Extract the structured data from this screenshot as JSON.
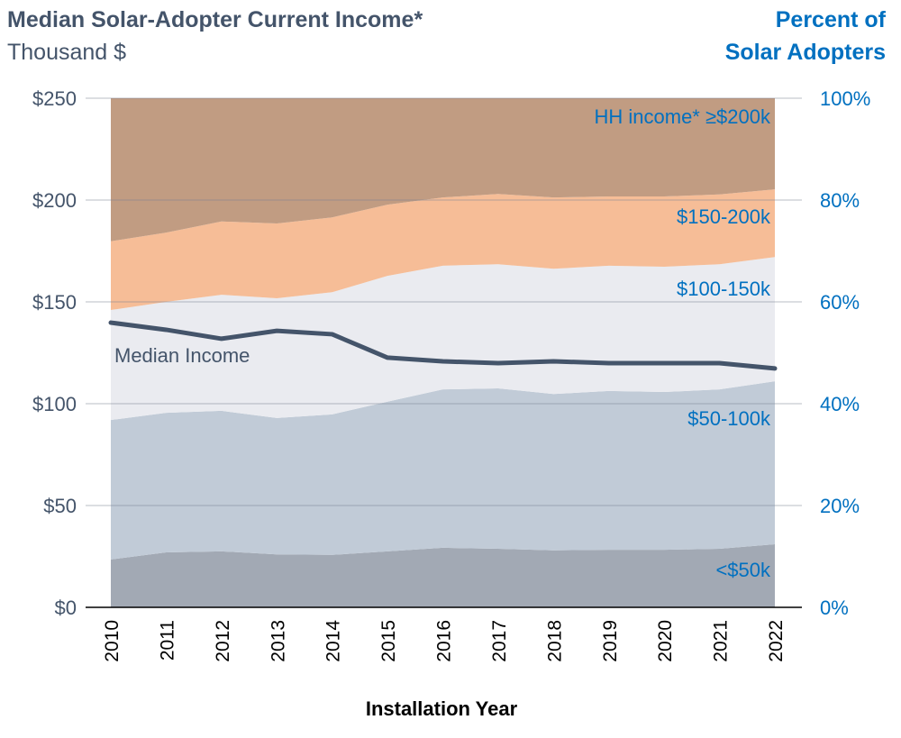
{
  "chart_data": {
    "type": "area",
    "title": "Median Solar-Adopter Current Income*",
    "subtitle": "Thousand $",
    "right_axis_title_line1": "Percent of",
    "right_axis_title_line2": "Solar Adopters",
    "xlabel": "Installation Year",
    "categories": [
      "2010",
      "2011",
      "2012",
      "2013",
      "2014",
      "2015",
      "2016",
      "2017",
      "2018",
      "2019",
      "2020",
      "2021",
      "2022"
    ],
    "left_axis": {
      "ylim": [
        0,
        250
      ],
      "ticks": [
        "$0",
        "$50",
        "$100",
        "$150",
        "$200",
        "$250"
      ],
      "tick_values": [
        0,
        50,
        100,
        150,
        200,
        250
      ]
    },
    "right_axis": {
      "ylim": [
        0,
        100
      ],
      "ticks": [
        "0%",
        "20%",
        "40%",
        "60%",
        "80%",
        "100%"
      ],
      "tick_values": [
        0,
        20,
        40,
        60,
        80,
        100
      ]
    },
    "grid": true,
    "stacked_series_percent_cumulative_top": [
      {
        "name": "<$50k",
        "color": "#a2a9b4",
        "values": [
          9.4,
          10.8,
          11.0,
          10.4,
          10.3,
          11.0,
          11.7,
          11.5,
          11.2,
          11.3,
          11.3,
          11.5,
          12.4
        ]
      },
      {
        "name": "$50-100k",
        "color": "#c1cbd7",
        "values": [
          36.8,
          38.2,
          38.6,
          37.2,
          37.9,
          40.4,
          42.8,
          43.0,
          41.9,
          42.5,
          42.3,
          42.8,
          44.4
        ]
      },
      {
        "name": "$100-150k",
        "color": "#eaebf0",
        "values": [
          58.4,
          60.0,
          61.4,
          60.7,
          61.9,
          65.1,
          67.1,
          67.4,
          66.5,
          67.1,
          66.9,
          67.4,
          68.8
        ]
      },
      {
        "name": "$150-200k",
        "color": "#f6bd97",
        "values": [
          71.9,
          73.6,
          75.8,
          75.4,
          76.6,
          79.1,
          80.5,
          81.2,
          80.5,
          80.7,
          80.7,
          81.1,
          82.1
        ]
      },
      {
        "name": "HH income* ≥$200k",
        "color": "#c19c82",
        "values": [
          100,
          100,
          100,
          100,
          100,
          100,
          100,
          100,
          100,
          100,
          100,
          100,
          100
        ]
      }
    ],
    "line_series": {
      "name": "Median Income",
      "color": "#44546a",
      "unit": "thousand $",
      "values": [
        139.8,
        136.3,
        131.9,
        135.8,
        134.1,
        122.6,
        120.8,
        119.9,
        120.8,
        119.9,
        119.9,
        119.9,
        117.3
      ]
    }
  }
}
